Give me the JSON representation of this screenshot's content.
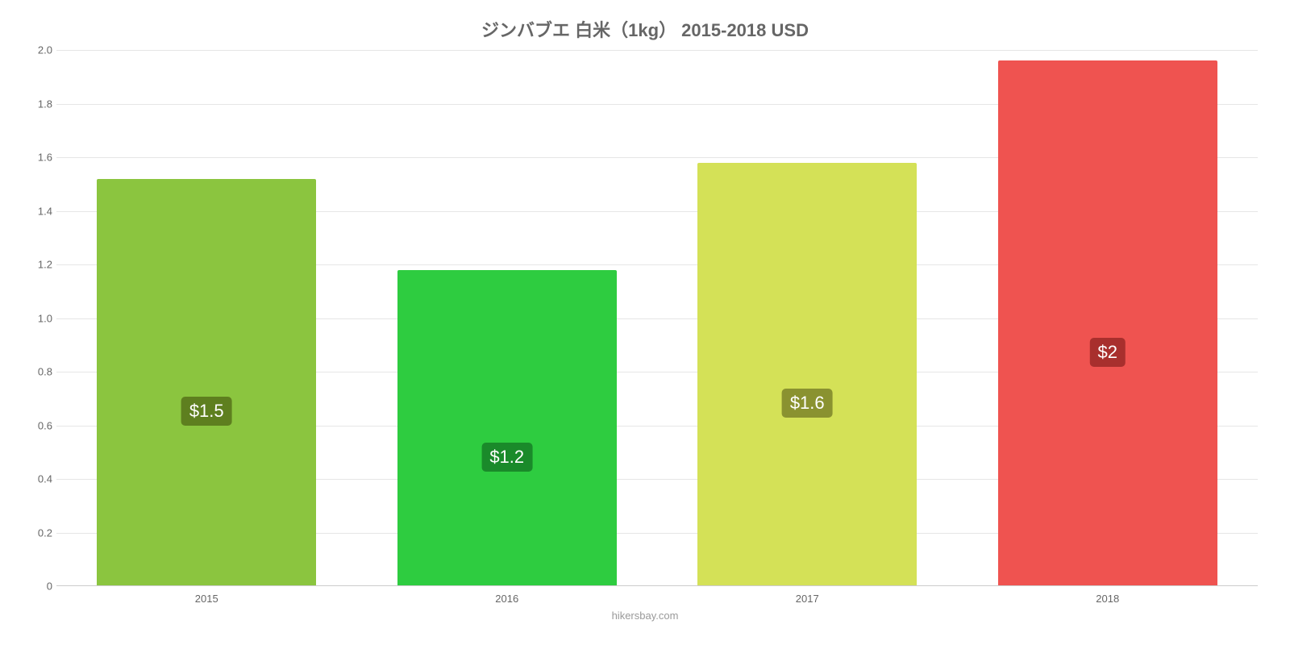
{
  "chart": {
    "type": "bar",
    "title": "ジンバブエ 白米（1kg） 2015-2018 USD",
    "title_fontsize": 22,
    "title_color": "#666666",
    "attribution": "hikersbay.com",
    "attribution_fontsize": 13,
    "attribution_color": "#999999",
    "background_color": "#ffffff",
    "grid_color": "#e6e6e6",
    "baseline_color": "#cccccc",
    "axis_tick_color": "#666666",
    "axis_tick_fontsize": 13,
    "ylim": [
      0,
      2.0
    ],
    "yticks": [
      "0",
      "0.2",
      "0.4",
      "0.6",
      "0.8",
      "1.0",
      "1.2",
      "1.4",
      "1.6",
      "1.8",
      "2.0"
    ],
    "ytick_values": [
      0,
      0.2,
      0.4,
      0.6,
      0.8,
      1.0,
      1.2,
      1.4,
      1.6,
      1.8,
      2.0
    ],
    "bar_width_pct": 73,
    "categories": [
      "2015",
      "2016",
      "2017",
      "2018"
    ],
    "values": [
      1.52,
      1.18,
      1.58,
      1.96
    ],
    "bar_colors": [
      "#8bc53f",
      "#2ecc40",
      "#d4e157",
      "#ef5350"
    ],
    "labels": [
      "$1.5",
      "$1.2",
      "$1.6",
      "$2"
    ],
    "label_bg_colors": [
      "#5e7f1f",
      "#1a8a2a",
      "#8a9230",
      "#a82f2d"
    ],
    "label_fontsize": 22,
    "label_text_color": "#ffffff"
  }
}
